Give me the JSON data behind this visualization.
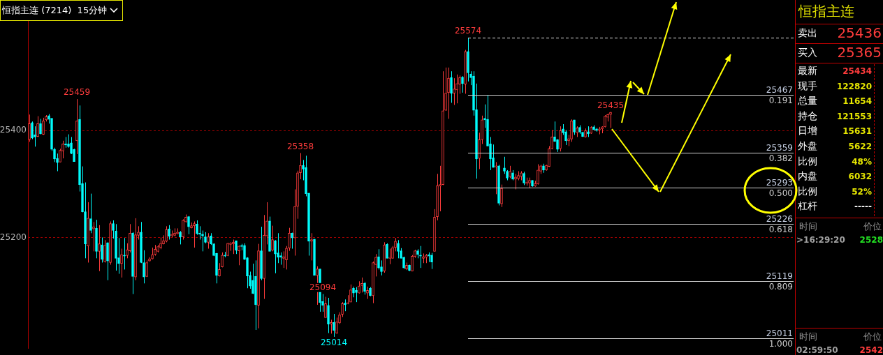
{
  "chart_data": [
    {
      "type": "candlestick",
      "title": "恒指主连 (7214)  15分钟",
      "categories": [
        null,
        null,
        null,
        null,
        null,
        null,
        null,
        null,
        null,
        null,
        null,
        null,
        null,
        null,
        null,
        null,
        null,
        null,
        null,
        null,
        null,
        null,
        null,
        null,
        null,
        null,
        null,
        null,
        null,
        null,
        null,
        null,
        null,
        null,
        null,
        null,
        null,
        null,
        null,
        null,
        null,
        null,
        null,
        null,
        null,
        null,
        null,
        null,
        null,
        null,
        null,
        null,
        null,
        null,
        null,
        null,
        null,
        null,
        null,
        null,
        null,
        null,
        null,
        null,
        null,
        null,
        null,
        null,
        null,
        null,
        null,
        null,
        null,
        null,
        null,
        null,
        null,
        null,
        null,
        null,
        null,
        null,
        null,
        null,
        null,
        null,
        null,
        null,
        null,
        null,
        null,
        null,
        null,
        null,
        null,
        null,
        null,
        null,
        null,
        null,
        null,
        null,
        null,
        null,
        null,
        null,
        null,
        null,
        null,
        null,
        null,
        null,
        null,
        null,
        null,
        null,
        null,
        null,
        null,
        null,
        null,
        null,
        null,
        null,
        null,
        null,
        null,
        null,
        null,
        null,
        null,
        null,
        null,
        null,
        null,
        null,
        null,
        null,
        null,
        null,
        null,
        null,
        null,
        null,
        null,
        null,
        null,
        null,
        null,
        null,
        null,
        null,
        null,
        null,
        null,
        null,
        null,
        null,
        null,
        null,
        null,
        null,
        null,
        null,
        null,
        null,
        null,
        null,
        null,
        null,
        null,
        null,
        null,
        null,
        null,
        null,
        null,
        null,
        null,
        null,
        null,
        null,
        null,
        null,
        null,
        null,
        null,
        null,
        null,
        null,
        null,
        null,
        null,
        null,
        null,
        null,
        null,
        null,
        null,
        null,
        null,
        null,
        null,
        null,
        null,
        null,
        null,
        null,
        null
      ],
      "ohlc": [
        [
          25383,
          25430,
          25379,
          25413
        ],
        [
          25415,
          25417,
          25384,
          25386
        ],
        [
          25392,
          25408,
          25370,
          25388
        ],
        [
          25389,
          25427,
          25388,
          25413
        ],
        [
          25413,
          25422,
          25393,
          25394
        ],
        [
          25393,
          25424,
          25392,
          25418
        ],
        [
          25420,
          25429,
          25417,
          25426
        ],
        [
          25428,
          25431,
          25413,
          25421
        ],
        [
          25423,
          25423,
          25362,
          25365
        ],
        [
          25365,
          25368,
          25341,
          25347
        ],
        [
          25348,
          25357,
          25324,
          25340
        ],
        [
          25341,
          25366,
          25341,
          25363
        ],
        [
          25362,
          25381,
          25348,
          25375
        ],
        [
          25375,
          25388,
          25368,
          25373
        ],
        [
          25375,
          25393,
          25368,
          25370
        ],
        [
          25377,
          25388,
          25356,
          25357
        ],
        [
          25365,
          25366,
          25342,
          25342
        ],
        [
          25381,
          25459,
          25356,
          25418
        ],
        [
          25421,
          25447,
          25286,
          25299
        ],
        [
          25301,
          25333,
          25247,
          25248
        ],
        [
          25248,
          25303,
          25161,
          25188
        ],
        [
          25184,
          25266,
          25153,
          25236
        ],
        [
          25235,
          25282,
          25208,
          25213
        ],
        [
          25216,
          25229,
          25174,
          25220
        ],
        [
          25217,
          25233,
          25161,
          25174
        ],
        [
          25174,
          25223,
          25137,
          25188
        ],
        [
          25186,
          25200,
          25153,
          25159
        ],
        [
          25155,
          25195,
          25153,
          25185
        ],
        [
          25190,
          25191,
          25120,
          25156
        ],
        [
          25153,
          25230,
          25149,
          25226
        ],
        [
          25226,
          25232,
          25198,
          25213
        ],
        [
          25212,
          25225,
          25138,
          25161
        ],
        [
          25162,
          25199,
          25132,
          25151
        ],
        [
          25151,
          25179,
          25125,
          25168
        ],
        [
          25167,
          25199,
          25140,
          25165
        ],
        [
          25166,
          25189,
          25161,
          25177
        ],
        [
          25175,
          25225,
          25172,
          25208
        ],
        [
          25208,
          25210,
          25094,
          25127
        ],
        [
          25126,
          25236,
          25120,
          25205
        ],
        [
          25204,
          25221,
          25196,
          25210
        ],
        [
          25210,
          25229,
          25152,
          25153
        ],
        [
          25153,
          25176,
          25114,
          25126
        ],
        [
          25127,
          25157,
          25126,
          25153
        ],
        [
          25156,
          25163,
          25155,
          25160
        ],
        [
          25160,
          25181,
          25159,
          25168
        ],
        [
          25168,
          25186,
          25166,
          25178
        ],
        [
          25174,
          25186,
          25172,
          25183
        ],
        [
          25181,
          25200,
          25178,
          25189
        ],
        [
          25188,
          25204,
          25187,
          25194
        ],
        [
          25193,
          25221,
          25191,
          25215
        ],
        [
          25216,
          25223,
          25196,
          25202
        ],
        [
          25203,
          25213,
          25200,
          25206
        ],
        [
          25204,
          25217,
          25202,
          25208
        ],
        [
          25207,
          25217,
          25206,
          25210
        ],
        [
          25210,
          25212,
          25187,
          25201
        ],
        [
          25201,
          25234,
          25196,
          25232
        ],
        [
          25229,
          25243,
          25228,
          25238
        ],
        [
          25239,
          25240,
          25206,
          25220
        ],
        [
          25218,
          25228,
          25217,
          25222
        ],
        [
          25222,
          25230,
          25181,
          25226
        ],
        [
          25225,
          25232,
          25205,
          25207
        ],
        [
          25208,
          25221,
          25196,
          25206
        ],
        [
          25206,
          25213,
          25174,
          25203
        ],
        [
          25201,
          25210,
          25189,
          25191
        ],
        [
          25191,
          25208,
          25179,
          25201
        ],
        [
          25203,
          25208,
          25186,
          25188
        ],
        [
          25188,
          25189,
          25165,
          25166
        ],
        [
          25170,
          25171,
          25114,
          25129
        ],
        [
          25128,
          25152,
          25127,
          25140
        ],
        [
          25145,
          25172,
          25144,
          25167
        ],
        [
          25167,
          25173,
          25163,
          25165
        ],
        [
          25166,
          25190,
          25165,
          25189
        ],
        [
          25187,
          25191,
          25175,
          25189
        ],
        [
          25188,
          25196,
          25169,
          25191
        ],
        [
          25194,
          25194,
          25169,
          25176
        ],
        [
          25175,
          25185,
          25148,
          25184
        ],
        [
          25185,
          25188,
          25176,
          25183
        ],
        [
          25185,
          25189,
          25158,
          25159
        ],
        [
          25162,
          25163,
          25105,
          25128
        ],
        [
          25129,
          25136,
          25104,
          25109
        ],
        [
          25120,
          25151,
          25094,
          25095
        ],
        [
          25127,
          25157,
          25027,
          25074
        ],
        [
          25073,
          25188,
          25030,
          25175
        ],
        [
          25175,
          25220,
          25120,
          25123
        ],
        [
          25123,
          25242,
          25085,
          25204
        ],
        [
          25203,
          25266,
          25187,
          25231
        ],
        [
          25231,
          25239,
          25174,
          25174
        ],
        [
          25176,
          25222,
          25174,
          25196
        ],
        [
          25194,
          25195,
          25133,
          25169
        ],
        [
          25171,
          25208,
          25152,
          25163
        ],
        [
          25166,
          25172,
          25149,
          25163
        ],
        [
          25161,
          25174,
          25143,
          25164
        ],
        [
          25158,
          25184,
          25140,
          25180
        ],
        [
          25180,
          25218,
          25175,
          25208
        ],
        [
          25208,
          25209,
          25179,
          25199
        ],
        [
          25199,
          25290,
          25166,
          25258
        ],
        [
          25258,
          25325,
          25235,
          25321
        ],
        [
          25321,
          25358,
          25309,
          25335
        ],
        [
          25335,
          25345,
          25307,
          25328
        ],
        [
          25331,
          25353,
          25277,
          25282
        ],
        [
          25283,
          25283,
          25166,
          25193
        ],
        [
          25193,
          25208,
          25157,
          25196
        ],
        [
          25197,
          25197,
          25129,
          25129
        ],
        [
          25129,
          25146,
          25074,
          25141
        ],
        [
          25141,
          25141,
          25061,
          25078
        ],
        [
          25080,
          25094,
          25061,
          25073
        ],
        [
          25050,
          25089,
          25050,
          25076
        ],
        [
          25073,
          25087,
          25021,
          25038
        ],
        [
          25038,
          25046,
          25020,
          25041
        ],
        [
          25041,
          25057,
          25014,
          25026
        ],
        [
          25021,
          25050,
          25020,
          25042
        ],
        [
          25040,
          25060,
          25038,
          25055
        ],
        [
          25056,
          25079,
          25051,
          25076
        ],
        [
          25077,
          25084,
          25062,
          25074
        ],
        [
          25076,
          25092,
          25075,
          25078
        ],
        [
          25079,
          25112,
          25079,
          25102
        ],
        [
          25105,
          25108,
          25088,
          25096
        ],
        [
          25101,
          25107,
          25079,
          25097
        ],
        [
          25096,
          25118,
          25095,
          25109
        ],
        [
          25110,
          25125,
          25097,
          25114
        ],
        [
          25114,
          25117,
          25093,
          25099
        ],
        [
          25096,
          25108,
          25085,
          25101
        ],
        [
          25105,
          25107,
          25090,
          25091
        ],
        [
          25091,
          25155,
          25077,
          25153
        ],
        [
          25149,
          25169,
          25127,
          25163
        ],
        [
          25164,
          25178,
          25140,
          25143
        ],
        [
          25145,
          25157,
          25129,
          25136
        ],
        [
          25137,
          25191,
          25134,
          25186
        ],
        [
          25187,
          25189,
          25161,
          25161
        ],
        [
          25161,
          25179,
          25150,
          25163
        ],
        [
          25161,
          25184,
          25161,
          25181
        ],
        [
          25181,
          25199,
          25174,
          25193
        ],
        [
          25189,
          25195,
          25161,
          25174
        ],
        [
          25175,
          25180,
          25161,
          25161
        ],
        [
          25163,
          25164,
          25141,
          25143
        ],
        [
          25141,
          25153,
          25139,
          25148
        ],
        [
          25148,
          25149,
          25137,
          25138
        ],
        [
          25137,
          25167,
          25137,
          25165
        ],
        [
          25164,
          25177,
          25162,
          25175
        ],
        [
          25175,
          25178,
          25161,
          25168
        ],
        [
          25167,
          25184,
          25143,
          25165
        ],
        [
          25161,
          25170,
          25152,
          25164
        ],
        [
          25163,
          25169,
          25152,
          25167
        ],
        [
          25168,
          25172,
          25154,
          25165
        ],
        [
          25167,
          25171,
          25141,
          25154
        ],
        [
          25174,
          25253,
          25174,
          25238
        ],
        [
          25239,
          25319,
          25232,
          25297
        ],
        [
          25296,
          25334,
          25249,
          25299
        ],
        [
          25299,
          25511,
          25298,
          25437
        ],
        [
          25438,
          25518,
          25437,
          25470
        ],
        [
          25471,
          25518,
          25422,
          25498
        ],
        [
          25499,
          25511,
          25452,
          25470
        ],
        [
          25470,
          25498,
          25448,
          25478
        ],
        [
          25476,
          25505,
          25451,
          25488
        ],
        [
          25487,
          25503,
          25469,
          25499
        ],
        [
          25500,
          25502,
          25471,
          25488
        ],
        [
          25487,
          25551,
          25469,
          25548
        ],
        [
          25548,
          25574,
          25492,
          25508
        ],
        [
          25506,
          25511,
          25485,
          25499
        ],
        [
          25502,
          25511,
          25428,
          25438
        ],
        [
          25439,
          25488,
          25310,
          25347
        ],
        [
          25348,
          25396,
          25328,
          25383
        ],
        [
          25383,
          25428,
          25375,
          25420
        ],
        [
          25423,
          25449,
          25405,
          25420
        ],
        [
          25421,
          25466,
          25371,
          25371
        ],
        [
          25375,
          25388,
          25326,
          25347
        ],
        [
          25349,
          25374,
          25331,
          25331
        ],
        [
          25332,
          25341,
          25281,
          25334
        ],
        [
          25334,
          25336,
          25260,
          25264
        ],
        [
          25263,
          25299,
          25257,
          25292
        ],
        [
          25330,
          25351,
          25319,
          25324
        ],
        [
          25324,
          25326,
          25307,
          25311
        ],
        [
          25314,
          25334,
          25311,
          25324
        ],
        [
          25321,
          25326,
          25307,
          25309
        ],
        [
          25309,
          25319,
          25290,
          25313
        ],
        [
          25310,
          25324,
          25307,
          25316
        ],
        [
          25314,
          25324,
          25307,
          25321
        ],
        [
          25320,
          25323,
          25298,
          25302
        ],
        [
          25301,
          25312,
          25297,
          25303
        ],
        [
          25302,
          25312,
          25292,
          25307
        ],
        [
          25307,
          25307,
          25295,
          25296
        ],
        [
          25296,
          25306,
          25295,
          25301
        ],
        [
          25300,
          25337,
          25299,
          25326
        ],
        [
          25324,
          25336,
          25319,
          25334
        ],
        [
          25334,
          25338,
          25321,
          25326
        ],
        [
          25326,
          25336,
          25325,
          25335
        ],
        [
          25333,
          25371,
          25332,
          25366
        ],
        [
          25366,
          25401,
          25365,
          25388
        ],
        [
          25388,
          25417,
          25379,
          25380
        ],
        [
          25383,
          25384,
          25360,
          25365
        ],
        [
          25366,
          25408,
          25361,
          25400
        ],
        [
          25403,
          25412,
          25392,
          25396
        ],
        [
          25398,
          25401,
          25373,
          25381
        ],
        [
          25381,
          25392,
          25371,
          25385
        ],
        [
          25384,
          25421,
          25379,
          25418
        ],
        [
          25420,
          25420,
          25392,
          25397
        ],
        [
          25396,
          25408,
          25388,
          25405
        ],
        [
          25406,
          25410,
          25394,
          25397
        ],
        [
          25397,
          25397,
          25388,
          25389
        ],
        [
          25388,
          25404,
          25387,
          25400
        ],
        [
          25398,
          25408,
          25388,
          25394
        ],
        [
          25395,
          25408,
          25394,
          25406
        ],
        [
          25407,
          25410,
          25400,
          25402
        ],
        [
          25403,
          25405,
          25398,
          25400
        ],
        [
          25401,
          25407,
          25393,
          25403
        ],
        [
          25403,
          25408,
          25395,
          25407
        ],
        [
          25407,
          25429,
          25406,
          25427
        ],
        [
          25425,
          25432,
          25417,
          25430
        ],
        [
          25430,
          25435,
          25405,
          25434
        ]
      ],
      "colors": [
        "#ff3c3c",
        "#00ffff",
        "#00ffff",
        "#ff3c3c",
        "#00ffff",
        "#ff3c3c",
        "#ff3c3c",
        "#00ffff",
        "#00ffff",
        "#00ffff",
        "#00ffff",
        "#ff3c3c",
        "#ff3c3c",
        "#00ffff",
        "#00ffff",
        "#00ffff",
        "#00ffff",
        "#ff3c3c",
        "#00ffff",
        "#00ffff",
        "#00ffff",
        "#ff3c3c",
        "#00ffff",
        "#ff3c3c",
        "#00ffff",
        "#ff3c3c",
        "#00ffff",
        "#ff3c3c",
        "#00ffff",
        "#ff3c3c",
        "#00ffff",
        "#00ffff",
        "#00ffff",
        "#ff3c3c",
        "#00ffff",
        "#ff3c3c",
        "#ff3c3c",
        "#00ffff",
        "#ff3c3c",
        "#ff3c3c",
        "#00ffff",
        "#00ffff",
        "#ff3c3c",
        "#ff3c3c",
        "#ff3c3c",
        "#ff3c3c",
        "#ff3c3c",
        "#ff3c3c",
        "#ff3c3c",
        "#ff3c3c",
        "#00ffff",
        "#ff3c3c",
        "#ff3c3c",
        "#ff3c3c",
        "#00ffff",
        "#ff3c3c",
        "#ff3c3c",
        "#00ffff",
        "#ff3c3c",
        "#ff3c3c",
        "#00ffff",
        "#00ffff",
        "#00ffff",
        "#00ffff",
        "#ff3c3c",
        "#00ffff",
        "#00ffff",
        "#00ffff",
        "#ff3c3c",
        "#ff3c3c",
        "#00ffff",
        "#ff3c3c",
        "#ff3c3c",
        "#ff3c3c",
        "#00ffff",
        "#ff3c3c",
        "#00ffff",
        "#00ffff",
        "#00ffff",
        "#00ffff",
        "#00ffff",
        "#00ffff",
        "#ff3c3c",
        "#00ffff",
        "#ff3c3c",
        "#ff3c3c",
        "#00ffff",
        "#ff3c3c",
        "#00ffff",
        "#00ffff",
        "#00ffff",
        "#ff3c3c",
        "#ff3c3c",
        "#ff3c3c",
        "#00ffff",
        "#ff3c3c",
        "#ff3c3c",
        "#ff3c3c",
        "#00ffff",
        "#00ffff",
        "#00ffff",
        "#ff3c3c",
        "#00ffff",
        "#ff3c3c",
        "#00ffff",
        "#00ffff",
        "#ff3c3c",
        "#00ffff",
        "#ff3c3c",
        "#00ffff",
        "#ff3c3c",
        "#ff3c3c",
        "#ff3c3c",
        "#00ffff",
        "#ff3c3c",
        "#ff3c3c",
        "#00ffff",
        "#00ffff",
        "#ff3c3c",
        "#ff3c3c",
        "#00ffff",
        "#ff3c3c",
        "#00ffff",
        "#ff3c3c",
        "#ff3c3c",
        "#00ffff",
        "#00ffff",
        "#ff3c3c",
        "#00ffff",
        "#ff3c3c",
        "#ff3c3c",
        "#ff3c3c",
        "#00ffff",
        "#00ffff",
        "#00ffff",
        "#ff3c3c",
        "#00ffff",
        "#ff3c3c",
        "#ff3c3c",
        "#00ffff",
        "#00ffff",
        "#ff3c3c",
        "#ff3c3c",
        "#00ffff",
        "#00ffff",
        "#ff3c3c",
        "#ff3c3c",
        "#ff3c3c",
        "#ff3c3c",
        "#ff3c3c",
        "#ff3c3c",
        "#00ffff",
        "#ff3c3c",
        "#ff3c3c",
        "#ff3c3c",
        "#00ffff",
        "#ff3c3c",
        "#00ffff",
        "#00ffff",
        "#00ffff",
        "#00ffff",
        "#ff3c3c",
        "#ff3c3c",
        "#00ffff",
        "#00ffff",
        "#00ffff",
        "#00ffff",
        "#ff3c3c",
        "#00ffff",
        "#ff3c3c",
        "#00ffff",
        "#00ffff",
        "#ff3c3c",
        "#00ffff",
        "#ff3c3c",
        "#ff3c3c",
        "#ff3c3c",
        "#00ffff",
        "#ff3c3c",
        "#ff3c3c",
        "#00ffff",
        "#ff3c3c",
        "#ff3c3c",
        "#ff3c3c",
        "#00ffff",
        "#ff3c3c",
        "#ff3c3c",
        "#ff3c3c",
        "#00ffff",
        "#00ffff",
        "#ff3c3c",
        "#00ffff",
        "#00ffff",
        "#ff3c3c",
        "#ff3c3c",
        "#00ffff",
        "#ff3c3c",
        "#00ffff",
        "#00ffff",
        "#ff3c3c",
        "#00ffff",
        "#ff3c3c",
        "#00ffff",
        "#00ffff",
        "#ff3c3c",
        "#ff3c3c",
        "#ff3c3c",
        "#ff3c3c",
        "#ff3c3c"
      ],
      "ylim": [
        24992,
        25617
      ],
      "yticks": [
        25200,
        25400
      ],
      "grid": "y",
      "ref_lines": [
        {
          "axis": "y",
          "value": 25574,
          "color": "#e6e6e6",
          "line_style": "dashed"
        },
        {
          "axis": "y",
          "value": 25467,
          "label": "25467\n0.191",
          "color": "#d2d2d2"
        },
        {
          "axis": "y",
          "value": 25359,
          "label": "25359\n0.382",
          "color": "#d2d2d2"
        },
        {
          "axis": "y",
          "value": 25293,
          "label": "25293\n0.500",
          "color": "#d2d2d2"
        },
        {
          "axis": "y",
          "value": 25226,
          "label": "25226\n0.618",
          "color": "#d2d2d2"
        },
        {
          "axis": "y",
          "value": 25119,
          "label": "25119\n0.809",
          "color": "#d2d2d2"
        },
        {
          "axis": "y",
          "value": 25011,
          "label": "25011\n1.000",
          "color": "#d2d2d2"
        }
      ],
      "annotations": [
        {
          "text": "25459",
          "y": 25459
        },
        {
          "text": "25094",
          "y": 25094
        },
        {
          "text": "25358",
          "y": 25358
        },
        {
          "text": "25014",
          "y": 25014
        },
        {
          "text": "25574",
          "y": 25574
        },
        {
          "text": "25435",
          "y": 25435
        }
      ]
    },
    {
      "type": "other",
      "title": "恒指主连",
      "annotations": [
        "卖出",
        "25436",
        "买入",
        "25365",
        "最新",
        "25434",
        "现手",
        "122820",
        "总量",
        "11654",
        "持仓",
        "121553",
        "日增",
        "15631",
        "外盘",
        "5622",
        "比例",
        "48%",
        "内盘",
        "6032",
        "比例",
        "52%",
        "杠杆",
        "-----",
        "时间",
        "价位",
        ">16:29:20",
        "2528",
        "时间",
        "价位",
        "02:59:50",
        "2542"
      ]
    }
  ]
}
